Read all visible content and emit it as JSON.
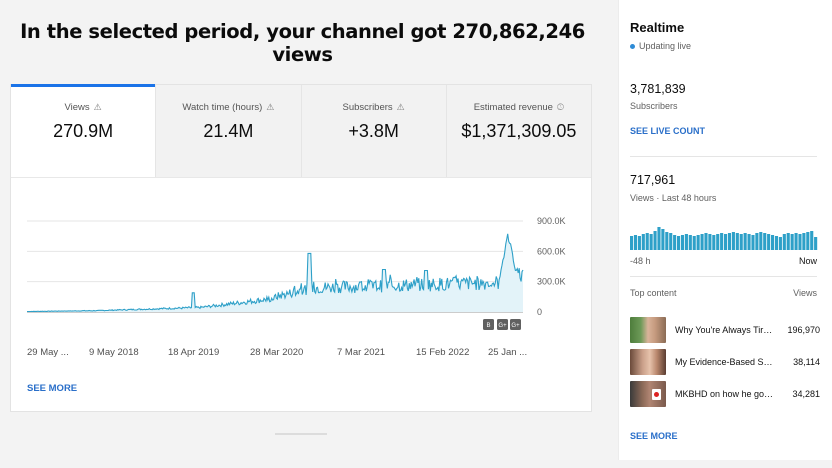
{
  "headline": "In the selected period, your channel got 270,862,246 views",
  "tabs": [
    {
      "label": "Views",
      "value": "270.9M",
      "icon": "warning-icon"
    },
    {
      "label": "Watch time (hours)",
      "value": "21.4M",
      "icon": "warning-icon"
    },
    {
      "label": "Subscribers",
      "value": "+3.8M",
      "icon": "warning-icon"
    },
    {
      "label": "Estimated revenue",
      "value": "$1,371,309.05",
      "icon": "clock-icon"
    }
  ],
  "chart_data": {
    "type": "area",
    "y_ticks": [
      "900.0K",
      "600.0K",
      "300.0K",
      "0"
    ],
    "x_ticks": [
      "29 May ...",
      "9 May 2018",
      "18 Apr 2019",
      "28 Mar 2020",
      "7 Mar 2021",
      "15 Feb 2022",
      "25 Jan ..."
    ],
    "ylim": [
      0,
      900000
    ],
    "color": "#2ea0c8",
    "legend_badges": [
      "B",
      "G+",
      "G+"
    ]
  },
  "see_more": "SEE MORE",
  "realtime": {
    "title": "Realtime",
    "status": "Updating live",
    "subscribers_value": "3,781,839",
    "subscribers_label": "Subscribers",
    "see_live_count": "SEE LIVE COUNT",
    "views_value": "717,961",
    "views_label": "Views · Last 48 hours",
    "bars_start": "-48 h",
    "bars_end": "Now",
    "bar_color": "#2ea0c8",
    "top_content_label": "Top content",
    "views_col_label": "Views",
    "items": [
      {
        "title": "Why You're Always Tire...",
        "views": "196,970"
      },
      {
        "title": "My Evidence-Based Ski...",
        "views": "38,114"
      },
      {
        "title": "MKBHD on how he got 1...",
        "views": "34,281"
      }
    ],
    "see_more": "SEE MORE"
  }
}
